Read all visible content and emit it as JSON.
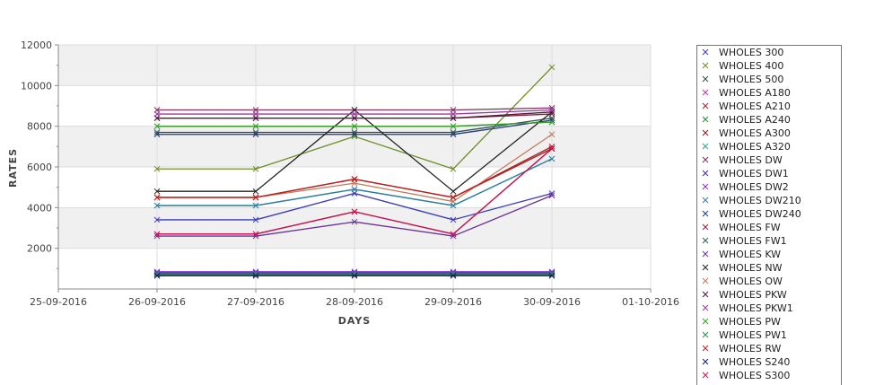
{
  "chart_data": {
    "type": "line",
    "title": "",
    "xlabel": "DAYS",
    "ylabel": "RATES",
    "ylim": [
      0,
      12000
    ],
    "y_ticks": [
      2000,
      4000,
      6000,
      8000,
      10000,
      12000
    ],
    "y_tick_labels": [
      "2000",
      "4000",
      "6000",
      "8000",
      "10000",
      "12000"
    ],
    "x_ticks": [
      "25-09-2016",
      "26-09-2016",
      "27-09-2016",
      "28-09-2016",
      "29-09-2016",
      "30-09-2016",
      "01-10-2016"
    ],
    "x": [
      "26-09-2016",
      "27-09-2016",
      "28-09-2016",
      "29-09-2016",
      "30-09-2016"
    ],
    "grid": true,
    "marker": "x",
    "legend_position": "right",
    "series": [
      {
        "name": "WHOLES 300",
        "color": "#3a3ab8",
        "values": [
          3400,
          3400,
          4700,
          3400,
          4700
        ]
      },
      {
        "name": "WHOLES 400",
        "color": "#6b8e23",
        "values": [
          5900,
          5900,
          7500,
          5900,
          10900
        ]
      },
      {
        "name": "WHOLES 500",
        "color": "#2f4f4f",
        "values": [
          7700,
          7700,
          7700,
          7700,
          8400
        ]
      },
      {
        "name": "WHOLES A180",
        "color": "#b03a9a",
        "values": [
          2700,
          2700,
          3800,
          2700,
          6900
        ]
      },
      {
        "name": "WHOLES A210",
        "color": "#9b2222",
        "values": [
          4500,
          4500,
          5400,
          4500,
          7000
        ]
      },
      {
        "name": "WHOLES A240",
        "color": "#1f8a3a",
        "values": [
          8000,
          8000,
          8000,
          8000,
          8200
        ]
      },
      {
        "name": "WHOLES A300",
        "color": "#8b1a1a",
        "values": [
          4500,
          4500,
          5400,
          4500,
          6900
        ]
      },
      {
        "name": "WHOLES A320",
        "color": "#2a9d9d",
        "values": [
          4100,
          4100,
          4900,
          4100,
          6400
        ]
      },
      {
        "name": "WHOLES DW",
        "color": "#7a2f5a",
        "values": [
          8800,
          8800,
          8800,
          8800,
          8900
        ]
      },
      {
        "name": "WHOLES DW1",
        "color": "#3a2fa0",
        "values": [
          800,
          800,
          800,
          800,
          800
        ]
      },
      {
        "name": "WHOLES DW2",
        "color": "#8a2be2",
        "values": [
          850,
          850,
          850,
          850,
          850
        ]
      },
      {
        "name": "WHOLES DW210",
        "color": "#2f7fa0",
        "values": [
          4100,
          4100,
          4900,
          4100,
          6400
        ]
      },
      {
        "name": "WHOLES DW240",
        "color": "#1e3a7a",
        "values": [
          7600,
          7600,
          7600,
          7600,
          8300
        ]
      },
      {
        "name": "WHOLES FW",
        "color": "#8b1a3a",
        "values": [
          8400,
          8400,
          8400,
          8400,
          8600
        ]
      },
      {
        "name": "WHOLES FW1",
        "color": "#2f5f4f",
        "values": [
          700,
          700,
          700,
          700,
          700
        ]
      },
      {
        "name": "WHOLES KW",
        "color": "#6a2f9a",
        "values": [
          2600,
          2600,
          3300,
          2600,
          4600
        ]
      },
      {
        "name": "WHOLES NW",
        "color": "#222222",
        "values": [
          4800,
          4800,
          8800,
          4800,
          8700
        ]
      },
      {
        "name": "WHOLES OW",
        "color": "#c07a5a",
        "values": [
          4500,
          4500,
          5200,
          4300,
          7600
        ]
      },
      {
        "name": "WHOLES PKW",
        "color": "#4a1a3a",
        "values": [
          8400,
          8400,
          8400,
          8400,
          8700
        ]
      },
      {
        "name": "WHOLES PKW1",
        "color": "#9a3aa0",
        "values": [
          8600,
          8600,
          8600,
          8600,
          8800
        ]
      },
      {
        "name": "WHOLES PW",
        "color": "#3aa02a",
        "values": [
          8000,
          8000,
          8000,
          8000,
          8200
        ]
      },
      {
        "name": "WHOLES PW1",
        "color": "#2a8a5a",
        "values": [
          750,
          750,
          750,
          750,
          750
        ]
      },
      {
        "name": "WHOLES RW",
        "color": "#c02020",
        "values": [
          4500,
          4500,
          5400,
          4500,
          6900
        ]
      },
      {
        "name": "WHOLES S240",
        "color": "#1a1a6a",
        "values": [
          650,
          650,
          650,
          650,
          650
        ]
      },
      {
        "name": "WHOLES S300",
        "color": "#c8104a",
        "values": [
          2700,
          2700,
          3800,
          2700,
          6900
        ]
      }
    ]
  }
}
